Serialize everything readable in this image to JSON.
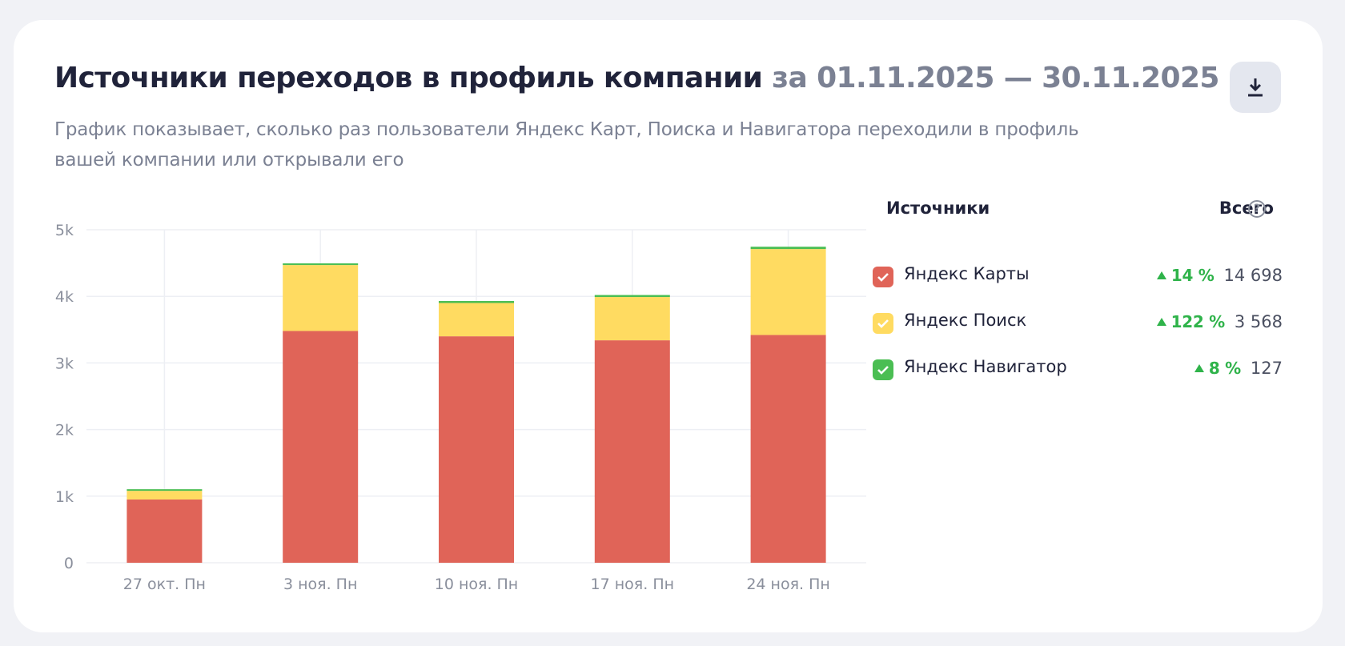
{
  "header": {
    "title": "Источники переходов в профиль компании",
    "period": "за 01.11.2025 — 30.11.2025",
    "description": "График показывает, сколько раз пользователи Яндекс Карт, Поиска и Навигатора переходили в профиль вашей компании или открывали его",
    "download_icon": "download-icon"
  },
  "legend": {
    "sources_label": "Источники",
    "total_label": "Всего",
    "help_glyph": "?",
    "items": [
      {
        "name": "Яндекс Карты",
        "change": "14 %",
        "total": "14 698",
        "color": "#e06458",
        "checked": true
      },
      {
        "name": "Яндекс Поиск",
        "change": "122 %",
        "total": "3 568",
        "color": "#ffdb61",
        "checked": true
      },
      {
        "name": "Яндекс Навигатор",
        "change": "8 %",
        "total": "127",
        "color": "#4bbe53",
        "checked": true
      }
    ]
  },
  "chart_data": {
    "type": "bar",
    "stacked": true,
    "categories": [
      "27 окт. Пн",
      "3 ноя. Пн",
      "10 ноя. Пн",
      "17 ноя. Пн",
      "24 ноя. Пн"
    ],
    "series": [
      {
        "name": "Яндекс Карты",
        "color": "#e06458",
        "values": [
          950,
          3480,
          3400,
          3340,
          3420
        ]
      },
      {
        "name": "Яндекс Поиск",
        "color": "#ffdb61",
        "values": [
          130,
          990,
          500,
          650,
          1290
        ]
      },
      {
        "name": "Яндекс Навигатор",
        "color": "#4bbe53",
        "values": [
          5,
          25,
          30,
          30,
          35
        ]
      }
    ],
    "ylim": [
      0,
      5000
    ],
    "yticks": [
      0,
      1000,
      2000,
      3000,
      4000,
      5000
    ],
    "ytick_labels": [
      "0",
      "1k",
      "2k",
      "3k",
      "4k",
      "5k"
    ],
    "grid": true,
    "legend": "right"
  }
}
